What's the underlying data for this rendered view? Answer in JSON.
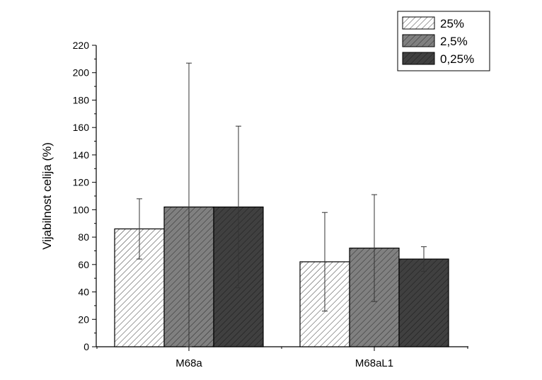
{
  "chart_data": {
    "type": "bar",
    "title": "",
    "xlabel": "",
    "ylabel": "Vijabilnost celija (%)",
    "ylim": [
      0,
      220
    ],
    "yticks": [
      0,
      20,
      40,
      60,
      80,
      100,
      120,
      140,
      160,
      180,
      200,
      220
    ],
    "categories": [
      "M68a",
      "M68aL1"
    ],
    "series": [
      {
        "name": "25%",
        "values": [
          86,
          62
        ],
        "error": [
          22,
          36
        ],
        "color": "#ffffff",
        "hatch": "#333333"
      },
      {
        "name": "2,5%",
        "values": [
          102,
          72
        ],
        "error": [
          105,
          39
        ],
        "color": "#808080",
        "hatch": "#2a2a2a"
      },
      {
        "name": "0,25%",
        "values": [
          102,
          64
        ],
        "error": [
          59,
          9
        ],
        "color": "#404040",
        "hatch": "#1a1a1a"
      }
    ],
    "legend_position": "top-right",
    "grid": false
  }
}
